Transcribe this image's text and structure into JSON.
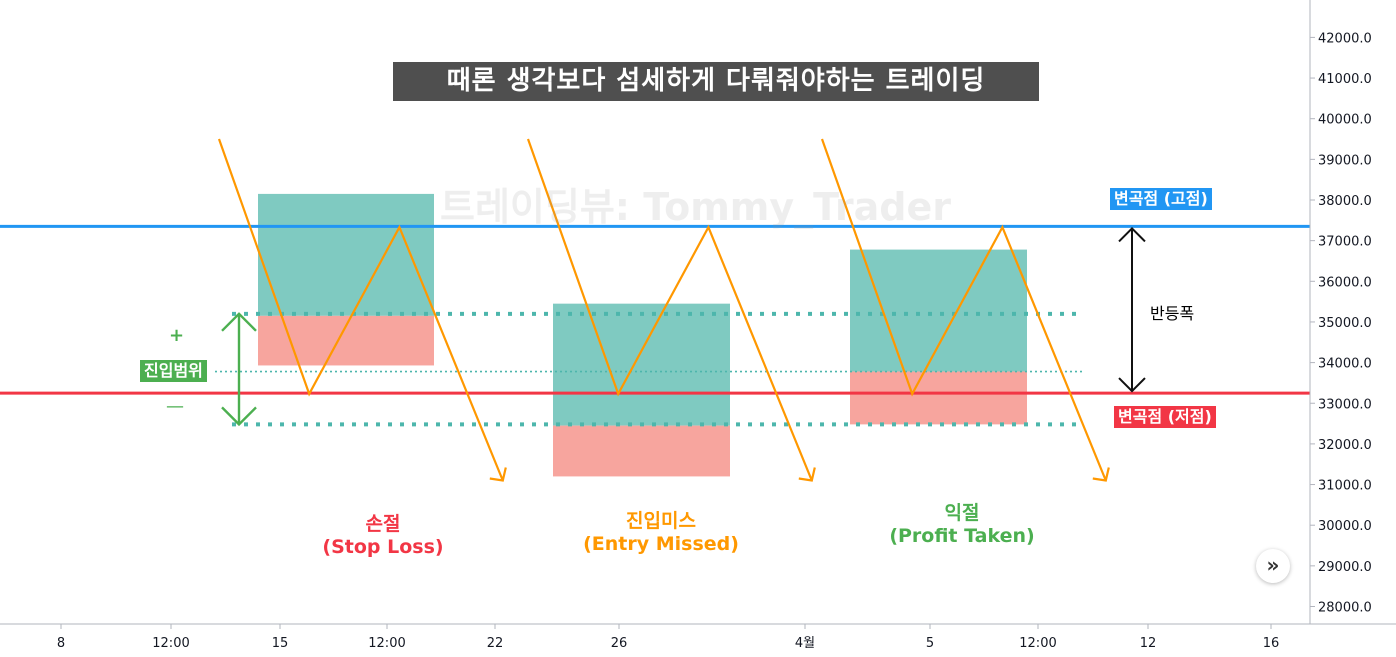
{
  "title": "때론 생각보다 섬세하게 다뤄줘야하는 트레이딩",
  "watermark": "트레이딩뷰: Tommy_Trader",
  "labels": {
    "resist_tag": "변곡점 (고점)",
    "support_tag": "변곡점 (저점)",
    "rebound_width": "반등폭",
    "entry_range": "진입범위",
    "plus": "+",
    "minus": "—",
    "case1_ko": "손절",
    "case1_en": "(Stop Loss)",
    "case2_ko": "진입미스",
    "case2_en": "(Entry Missed)",
    "case3_ko": "익절",
    "case3_en": "(Profit Taken)"
  },
  "colors": {
    "resist": "#2196f3",
    "support": "#f23645",
    "path": "#ff9800",
    "profit_zone": "#7fcac1",
    "loss_zone": "#f7a59e",
    "range_green": "#4caf50",
    "dotted": "#4db6ac",
    "title_bg": "#4f4f4f",
    "case1": "#f23645",
    "case2": "#ff9800",
    "case3": "#4caf50"
  },
  "chart_data": {
    "type": "line",
    "y_axis": {
      "range": [
        27700,
        42700
      ],
      "ticks": [
        "28000.0",
        "29000.0",
        "30000.0",
        "31000.0",
        "32000.0",
        "33000.0",
        "34000.0",
        "35000.0",
        "36000.0",
        "37000.0",
        "38000.0",
        "39000.0",
        "40000.0",
        "41000.0",
        "42000.0"
      ]
    },
    "x_axis": {
      "ticks": [
        "8",
        "12:00",
        "15",
        "12:00",
        "22",
        "26",
        "4월",
        "5",
        "12:00",
        "12",
        "16"
      ]
    },
    "levels": {
      "resistance": 37350,
      "support": 33250,
      "entry_center": 33780,
      "entry_upper": 35200,
      "entry_lower": 32480
    },
    "cases": [
      {
        "name": "손절 (Stop Loss)",
        "path": [
          [
            0.0,
            39500
          ],
          [
            0.41,
            33230
          ],
          [
            0.82,
            37330
          ],
          [
            1.29,
            31100
          ]
        ],
        "profit_zone": [
          35150,
          38150
        ],
        "loss_zone": [
          33930,
          35150
        ]
      },
      {
        "name": "진입미스 (Entry Missed)",
        "path": [
          [
            0.0,
            39500
          ],
          [
            0.41,
            33230
          ],
          [
            0.82,
            37330
          ],
          [
            1.29,
            31100
          ]
        ],
        "profit_zone": [
          32450,
          35450
        ],
        "loss_zone": [
          31200,
          32450
        ]
      },
      {
        "name": "익절 (Profit Taken)",
        "path": [
          [
            0.0,
            39500
          ],
          [
            0.41,
            33230
          ],
          [
            0.82,
            37330
          ],
          [
            1.29,
            31100
          ]
        ],
        "profit_zone": [
          33780,
          36780
        ],
        "loss_zone": [
          32480,
          33780
        ]
      }
    ]
  }
}
